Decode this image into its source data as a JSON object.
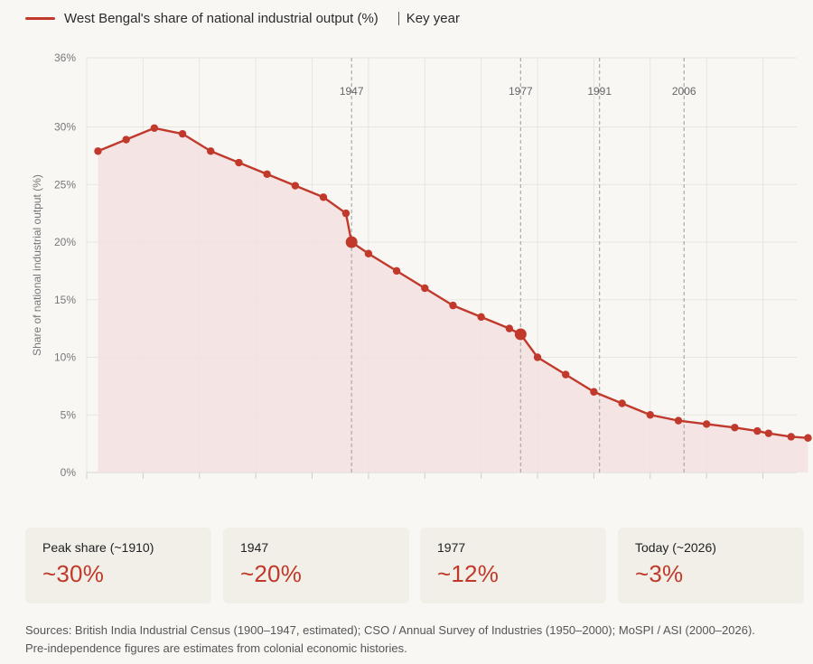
{
  "colors": {
    "series": "#c0392b",
    "fill": "#f5e1e0",
    "grid": "#e7e5e0",
    "annotation": "#aaaaaa",
    "axis_text": "#777777",
    "stat_value": "#c0392b"
  },
  "legend": {
    "series_label": "West Bengal's share of national industrial output (%)",
    "key_label": "Key year"
  },
  "chart_data": {
    "type": "area",
    "title": "",
    "xlabel": "",
    "ylabel": "Share of national industrial output (%)",
    "ylim": [
      0,
      36
    ],
    "xlim": [
      1900,
      2026
    ],
    "y_ticks": [
      0,
      5,
      10,
      15,
      20,
      25,
      30,
      36
    ],
    "y_tick_labels": [
      "0%",
      "5%",
      "10%",
      "15%",
      "20%",
      "25%",
      "30%",
      "36%"
    ],
    "grid": true,
    "legend_position": "top-left",
    "series": [
      {
        "name": "West Bengal's share of national industrial output (%)",
        "x": [
          1902,
          1907,
          1912,
          1917,
          1922,
          1927,
          1932,
          1937,
          1942,
          1946,
          1947,
          1950,
          1955,
          1960,
          1965,
          1970,
          1975,
          1977,
          1980,
          1985,
          1990,
          1995,
          2000,
          2005,
          2010,
          2015,
          2019,
          2021,
          2025,
          2028
        ],
        "values": [
          27.9,
          28.9,
          29.9,
          29.4,
          27.9,
          26.9,
          25.9,
          24.9,
          23.9,
          22.5,
          20.0,
          19.0,
          17.5,
          16.0,
          14.5,
          13.5,
          12.5,
          12.0,
          10.0,
          8.5,
          7.0,
          6.0,
          5.0,
          4.5,
          4.2,
          3.9,
          3.6,
          3.4,
          3.1,
          3.0
        ],
        "highlight_x": [
          1947,
          1977
        ]
      }
    ],
    "annotations": [
      {
        "x": 1947,
        "label": "1947"
      },
      {
        "x": 1977,
        "label": "1977"
      },
      {
        "x": 1991,
        "label": "1991"
      },
      {
        "x": 2006,
        "label": "2006"
      }
    ]
  },
  "stats": [
    {
      "label": "Peak share (~1910)",
      "value": "~30%"
    },
    {
      "label": "1947",
      "value": "~20%"
    },
    {
      "label": "1977",
      "value": "~12%"
    },
    {
      "label": "Today (~2026)",
      "value": "~3%"
    }
  ],
  "footer": {
    "line1": "Sources: British India Industrial Census (1900–1947, estimated); CSO / Annual Survey of Industries (1950–2000); MoSPI / ASI (2000–2026).",
    "line2": "Pre-independence figures are estimates from colonial economic histories."
  }
}
